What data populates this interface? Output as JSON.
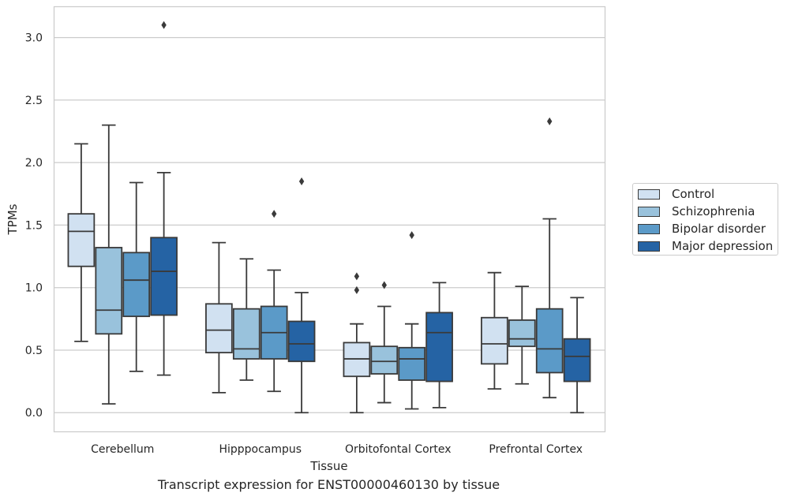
{
  "caption": "Transcript expression for ENST00000460130 by tissue",
  "chart_data": {
    "type": "box",
    "xlabel": "Tissue",
    "ylabel": "TPMs",
    "ylim": [
      -0.15,
      3.25
    ],
    "yticks": [
      "0.0",
      "0.5",
      "1.0",
      "1.5",
      "2.0",
      "2.5",
      "3.0"
    ],
    "grid": "horizontal",
    "legend_position": "right",
    "categories": [
      "Cerebellum",
      "Hipppocampus",
      "Orbitofontal Cortex",
      "Prefrontal Cortex"
    ],
    "series": [
      {
        "name": "Control",
        "color": "#d1e1f1",
        "boxes": [
          {
            "whislo": 0.57,
            "q1": 1.17,
            "med": 1.45,
            "q3": 1.59,
            "whishi": 2.15,
            "fliers": []
          },
          {
            "whislo": 0.16,
            "q1": 0.48,
            "med": 0.66,
            "q3": 0.87,
            "whishi": 1.36,
            "fliers": []
          },
          {
            "whislo": 0.0,
            "q1": 0.29,
            "med": 0.43,
            "q3": 0.56,
            "whishi": 0.71,
            "fliers": [
              0.98,
              1.09
            ]
          },
          {
            "whislo": 0.19,
            "q1": 0.39,
            "med": 0.55,
            "q3": 0.76,
            "whishi": 1.12,
            "fliers": []
          }
        ]
      },
      {
        "name": "Schizophrenia",
        "color": "#99c2dc",
        "boxes": [
          {
            "whislo": 0.07,
            "q1": 0.63,
            "med": 0.82,
            "q3": 1.32,
            "whishi": 2.3,
            "fliers": []
          },
          {
            "whislo": 0.26,
            "q1": 0.43,
            "med": 0.51,
            "q3": 0.83,
            "whishi": 1.23,
            "fliers": []
          },
          {
            "whislo": 0.08,
            "q1": 0.31,
            "med": 0.41,
            "q3": 0.53,
            "whishi": 0.85,
            "fliers": [
              1.02
            ]
          },
          {
            "whislo": 0.23,
            "q1": 0.53,
            "med": 0.59,
            "q3": 0.74,
            "whishi": 1.01,
            "fliers": []
          }
        ]
      },
      {
        "name": "Bipolar disorder",
        "color": "#5b9ac8",
        "boxes": [
          {
            "whislo": 0.33,
            "q1": 0.77,
            "med": 1.06,
            "q3": 1.28,
            "whishi": 1.84,
            "fliers": []
          },
          {
            "whislo": 0.17,
            "q1": 0.43,
            "med": 0.64,
            "q3": 0.85,
            "whishi": 1.14,
            "fliers": [
              1.59
            ]
          },
          {
            "whislo": 0.03,
            "q1": 0.26,
            "med": 0.43,
            "q3": 0.52,
            "whishi": 0.71,
            "fliers": [
              1.42
            ]
          },
          {
            "whislo": 0.12,
            "q1": 0.32,
            "med": 0.51,
            "q3": 0.83,
            "whishi": 1.55,
            "fliers": [
              2.33
            ]
          }
        ]
      },
      {
        "name": "Major depression",
        "color": "#2563a4",
        "boxes": [
          {
            "whislo": 0.3,
            "q1": 0.78,
            "med": 1.13,
            "q3": 1.4,
            "whishi": 1.92,
            "fliers": [
              3.1
            ]
          },
          {
            "whislo": 0.0,
            "q1": 0.41,
            "med": 0.55,
            "q3": 0.73,
            "whishi": 0.96,
            "fliers": [
              1.85
            ]
          },
          {
            "whislo": 0.04,
            "q1": 0.25,
            "med": 0.64,
            "q3": 0.8,
            "whishi": 1.04,
            "fliers": []
          },
          {
            "whislo": 0.0,
            "q1": 0.25,
            "med": 0.45,
            "q3": 0.59,
            "whishi": 0.92,
            "fliers": []
          }
        ]
      }
    ]
  }
}
